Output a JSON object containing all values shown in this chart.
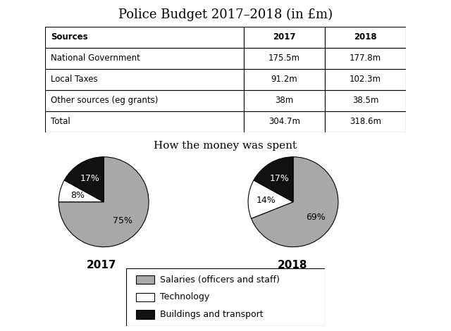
{
  "title": "Police Budget 2017–2018 (in £m)",
  "table": {
    "headers": [
      "Sources",
      "2017",
      "2018"
    ],
    "rows": [
      [
        "National Government",
        "175.5m",
        "177.8m"
      ],
      [
        "Local Taxes",
        "91.2m",
        "102.3m"
      ],
      [
        "Other sources (eg grants)",
        "38m",
        "38.5m"
      ],
      [
        "Total",
        "304.7m",
        "318.6m"
      ]
    ]
  },
  "pie_title": "How the money was spent",
  "pie_2017": {
    "label": "2017",
    "values": [
      75,
      8,
      17
    ],
    "colors": [
      "#a8a8a8",
      "#ffffff",
      "#111111"
    ],
    "labels": [
      "75%",
      "8%",
      "17%"
    ],
    "label_colors": [
      "black",
      "black",
      "white"
    ],
    "startangle": 90
  },
  "pie_2018": {
    "label": "2018",
    "values": [
      69,
      14,
      17
    ],
    "colors": [
      "#a8a8a8",
      "#ffffff",
      "#111111"
    ],
    "labels": [
      "69%",
      "14%",
      "17%"
    ],
    "label_colors": [
      "black",
      "black",
      "white"
    ],
    "startangle": 90
  },
  "legend_labels": [
    "Salaries (officers and staff)",
    "Technology",
    "Buildings and transport"
  ],
  "legend_colors": [
    "#a8a8a8",
    "#ffffff",
    "#111111"
  ],
  "background_color": "#ffffff",
  "title_fontsize": 13,
  "table_fontsize": 8.5,
  "pie_title_fontsize": 11,
  "pie_label_fontsize": 9,
  "pie_year_fontsize": 11,
  "legend_fontsize": 9
}
